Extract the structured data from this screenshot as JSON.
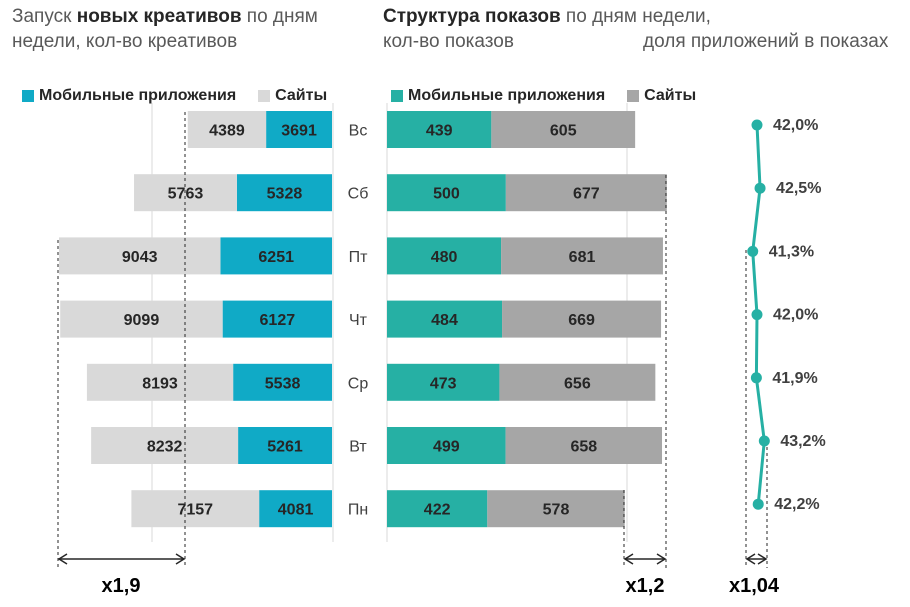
{
  "titles": {
    "left_bold": "новых креативов",
    "left_pre": "Запуск ",
    "left_post": " по дням",
    "left_line2": "недели, кол-во креативов",
    "mid_bold": "Структура показов",
    "mid_post": " по дням недели,",
    "mid_line2": "кол-во показов",
    "right_line2": "доля приложений в показах"
  },
  "colors": {
    "left_apps": "#10aac6",
    "left_sites": "#d9d9d9",
    "mid_apps": "#26b0a4",
    "mid_sites": "#a6a6a6",
    "line": "#26b0a4"
  },
  "days": [
    "Вс",
    "Сб",
    "Пт",
    "Чт",
    "Ср",
    "Вт",
    "Пн"
  ],
  "chart_data": [
    {
      "type": "bar",
      "title": "Запуск новых креативов по дням недели, кол-во креативов",
      "categories": [
        "Вс",
        "Сб",
        "Пт",
        "Чт",
        "Ср",
        "Вт",
        "Пн"
      ],
      "series": [
        {
          "name": "Мобильные приложения",
          "values": [
            3691,
            5328,
            6251,
            6127,
            5538,
            5261,
            4081
          ]
        },
        {
          "name": "Сайты",
          "values": [
            4389,
            5763,
            9043,
            9099,
            8193,
            8232,
            7157
          ]
        }
      ],
      "annotation": "x1,9"
    },
    {
      "type": "bar",
      "title": "Структура показов по дням недели, кол-во показов",
      "categories": [
        "Вс",
        "Сб",
        "Пт",
        "Чт",
        "Ср",
        "Вт",
        "Пн"
      ],
      "series": [
        {
          "name": "Мобильные приложения",
          "values": [
            439,
            500,
            480,
            484,
            473,
            499,
            422
          ]
        },
        {
          "name": "Сайты",
          "values": [
            605,
            677,
            681,
            669,
            656,
            658,
            578
          ]
        }
      ],
      "annotation": "x1,2"
    },
    {
      "type": "line",
      "title": "доля приложений в показах",
      "categories": [
        "Вс",
        "Сб",
        "Пт",
        "Чт",
        "Ср",
        "Вт",
        "Пн"
      ],
      "values": [
        42.0,
        42.5,
        41.3,
        42.0,
        41.9,
        43.2,
        42.2
      ],
      "labels": [
        "42,0%",
        "42,5%",
        "41,3%",
        "42,0%",
        "41,9%",
        "43,2%",
        "42,2%"
      ],
      "annotation": "x1,04"
    }
  ],
  "legend_left": [
    "Мобильные приложения",
    "Сайты"
  ],
  "legend_mid": [
    "Мобильные приложения",
    "Сайты"
  ]
}
